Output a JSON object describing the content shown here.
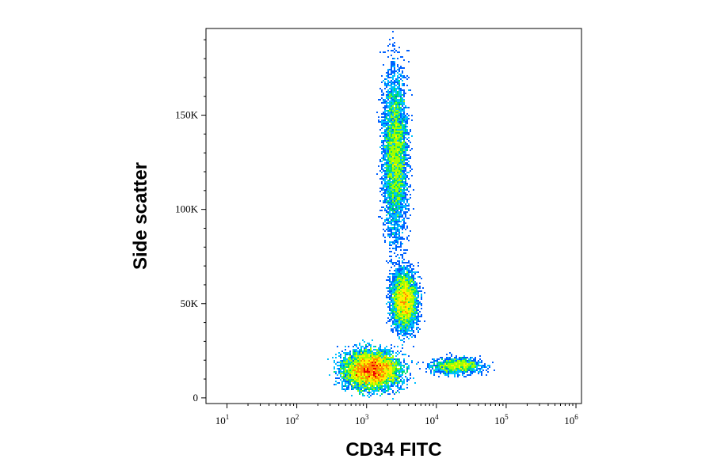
{
  "chart_data": {
    "type": "scatter",
    "subtype": "flow-cytometry-density-dot-plot",
    "title": "",
    "xlabel": "CD34 FITC",
    "ylabel": "Side scatter",
    "x_scale": "log",
    "xlim": [
      5,
      1200000
    ],
    "ylim": [
      -3000,
      196000
    ],
    "x_ticks": [
      {
        "value": 10,
        "base": "10",
        "exp": "1"
      },
      {
        "value": 100,
        "base": "10",
        "exp": "2"
      },
      {
        "value": 1000,
        "base": "10",
        "exp": "3"
      },
      {
        "value": 10000,
        "base": "10",
        "exp": "4"
      },
      {
        "value": 100000,
        "base": "10",
        "exp": "5"
      },
      {
        "value": 1000000,
        "base": "10",
        "exp": "6"
      }
    ],
    "y_ticks": [
      {
        "value": 0,
        "label": "0"
      },
      {
        "value": 50000,
        "label": "50K"
      },
      {
        "value": 100000,
        "label": "100K"
      },
      {
        "value": 150000,
        "label": "150K"
      }
    ],
    "grid": false,
    "legend": "none",
    "colormap": [
      "#0000cc",
      "#0060ff",
      "#00c0ff",
      "#00e070",
      "#a0ff00",
      "#ffee00",
      "#ff8800",
      "#ee0000"
    ],
    "populations": [
      {
        "x_center": 1200,
        "y_center": 15000,
        "x_spread_decades": 0.28,
        "y_spread": 7000,
        "relative_density": 1.0
      },
      {
        "x_center": 2600,
        "y_center": 130000,
        "x_spread_decades": 0.12,
        "y_spread": 30000,
        "relative_density": 0.55
      },
      {
        "x_center": 3500,
        "y_center": 52000,
        "x_spread_decades": 0.13,
        "y_spread": 11000,
        "relative_density": 0.45
      },
      {
        "x_center": 20000,
        "y_center": 17000,
        "x_spread_decades": 0.25,
        "y_spread": 3000,
        "relative_density": 0.15
      }
    ]
  }
}
